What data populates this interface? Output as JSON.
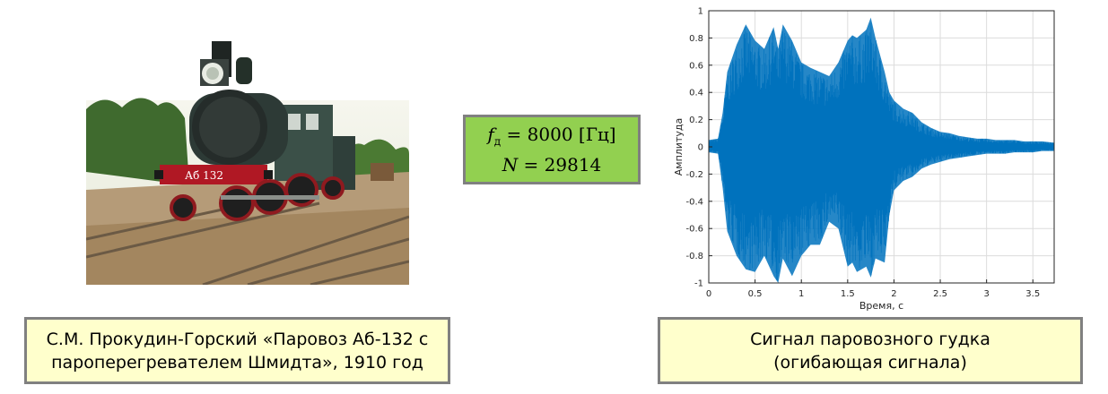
{
  "params": {
    "fs_symbol": "f",
    "fs_subscript": "д",
    "fs_value": "= 8000 [Гц]",
    "n_symbol": "N",
    "n_value": "= 29814"
  },
  "captions": {
    "photo_line1": "С.М. Прокудин-Горский «Паровоз Аб-132 с",
    "photo_line2": "пароперегревателем Шмидта», 1910 год",
    "signal_line1": "Сигнал паровозного гудка",
    "signal_line2": "(огибающая сигнала)"
  },
  "photo": {
    "plate_text": "Аб 132"
  },
  "colors": {
    "signal": "#0072bd",
    "params_bg": "#92d050",
    "caption_bg": "#ffffcc",
    "box_border": "#808080"
  },
  "chart_data": {
    "type": "area",
    "title": "",
    "xlabel": "Время, с",
    "ylabel": "Амплитуда",
    "xlim": [
      0,
      3.73
    ],
    "ylim": [
      -1,
      1
    ],
    "xticks": [
      0,
      0.5,
      1,
      1.5,
      2,
      2.5,
      3,
      3.5
    ],
    "xtick_labels": [
      "0",
      "0.5",
      "1",
      "1.5",
      "2",
      "2.5",
      "3",
      "3.5"
    ],
    "yticks": [
      1,
      0.8,
      0.6,
      0.4,
      0.2,
      0,
      -0.2,
      -0.4,
      -0.6,
      -0.8,
      -1
    ],
    "ytick_labels": [
      "1",
      "0.8",
      "0.6",
      "0.4",
      "0.2",
      "0",
      "-0.2",
      "-0.4",
      "-0.6",
      "-0.8",
      "-1"
    ],
    "grid": true,
    "series": [
      {
        "x": [
          0,
          0.1,
          0.15,
          0.2,
          0.3,
          0.4,
          0.5,
          0.6,
          0.7,
          0.75,
          0.8,
          0.9,
          1.0,
          1.1,
          1.2,
          1.3,
          1.4,
          1.5,
          1.55,
          1.6,
          1.7,
          1.75,
          1.8,
          1.9,
          1.95,
          2.0,
          2.1,
          2.2,
          2.3,
          2.4,
          2.5,
          2.6,
          2.7,
          2.8,
          2.9,
          3.0,
          3.1,
          3.2,
          3.3,
          3.4,
          3.5,
          3.6,
          3.73
        ],
        "upper": [
          0.05,
          0.06,
          0.25,
          0.55,
          0.75,
          0.9,
          0.78,
          0.72,
          0.88,
          0.72,
          0.9,
          0.78,
          0.62,
          0.58,
          0.55,
          0.52,
          0.62,
          0.78,
          0.82,
          0.8,
          0.86,
          0.95,
          0.8,
          0.55,
          0.4,
          0.34,
          0.28,
          0.25,
          0.18,
          0.14,
          0.11,
          0.1,
          0.08,
          0.07,
          0.06,
          0.06,
          0.05,
          0.05,
          0.05,
          0.04,
          0.04,
          0.04,
          0.03
        ],
        "lower": [
          -0.04,
          -0.05,
          -0.3,
          -0.62,
          -0.8,
          -0.9,
          -0.92,
          -0.8,
          -0.95,
          -1.0,
          -0.82,
          -0.95,
          -0.8,
          -0.72,
          -0.72,
          -0.55,
          -0.6,
          -0.88,
          -0.85,
          -0.92,
          -0.88,
          -0.96,
          -0.82,
          -0.85,
          -0.5,
          -0.32,
          -0.25,
          -0.22,
          -0.16,
          -0.13,
          -0.11,
          -0.09,
          -0.08,
          -0.07,
          -0.06,
          -0.05,
          -0.05,
          -0.05,
          -0.04,
          -0.04,
          -0.04,
          -0.03,
          -0.03
        ]
      }
    ]
  }
}
